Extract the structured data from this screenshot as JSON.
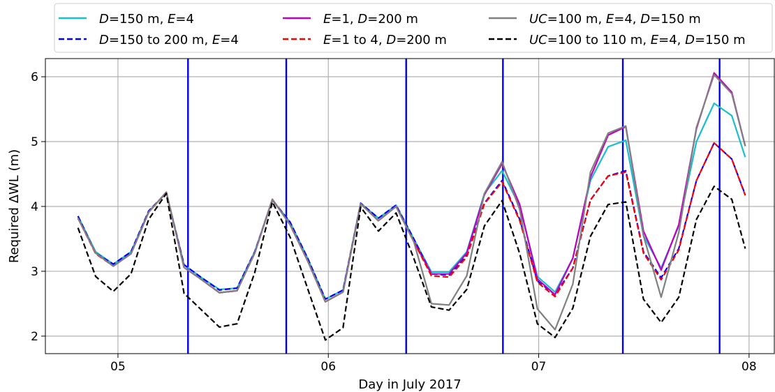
{
  "chart_data": {
    "type": "line",
    "xlabel": "Day in July 2017",
    "ylabel": "Required ΔWL (m)",
    "xlim": [
      4.655,
      8.12
    ],
    "ylim": [
      1.73,
      6.28
    ],
    "x_ticks": [
      5,
      6,
      7,
      8
    ],
    "x_tick_labels": [
      "05",
      "06",
      "07",
      "08"
    ],
    "y_ticks": [
      2,
      3,
      4,
      5,
      6
    ],
    "y_tick_labels": [
      "2",
      "3",
      "4",
      "5",
      "6"
    ],
    "grid": true,
    "legend_position": "top, above plot, 3 columns",
    "x": [
      4.81,
      4.894,
      4.978,
      5.062,
      5.146,
      5.23,
      5.314,
      5.398,
      5.482,
      5.566,
      5.65,
      5.734,
      5.818,
      5.902,
      5.986,
      6.07,
      6.154,
      6.238,
      6.322,
      6.406,
      6.49,
      6.574,
      6.658,
      6.742,
      6.826,
      6.91,
      6.994,
      7.078,
      7.162,
      7.246,
      7.33,
      7.414,
      7.498,
      7.582,
      7.666,
      7.75,
      7.834,
      7.918,
      7.982
    ],
    "series": [
      {
        "name_parts": [
          "D=150 m,  E=4"
        ],
        "label_index": 0,
        "style": "solid",
        "color": "#17becf",
        "values": [
          3.85,
          3.3,
          3.11,
          3.3,
          3.92,
          4.21,
          3.1,
          2.9,
          2.72,
          2.74,
          3.3,
          4.1,
          3.76,
          3.2,
          2.57,
          2.71,
          4.05,
          3.82,
          4.02,
          3.5,
          2.99,
          2.99,
          3.3,
          4.2,
          4.55,
          4.0,
          2.92,
          2.68,
          3.2,
          4.4,
          4.92,
          5.02,
          3.55,
          3.05,
          3.7,
          5.0,
          5.59,
          5.4,
          4.76
        ]
      },
      {
        "name_parts": [
          "D=150 to 200 m, E=4"
        ],
        "label_index": 1,
        "style": "dashed",
        "color": "#0000ff",
        "values": [
          3.85,
          3.28,
          3.11,
          3.3,
          3.93,
          4.21,
          3.1,
          2.9,
          2.71,
          2.74,
          3.3,
          4.1,
          3.76,
          3.2,
          2.57,
          2.71,
          4.05,
          3.82,
          4.02,
          3.5,
          2.96,
          2.94,
          3.25,
          4.05,
          4.4,
          3.8,
          2.85,
          2.64,
          3.05,
          4.1,
          4.47,
          4.55,
          3.3,
          2.9,
          3.35,
          4.4,
          4.98,
          4.73,
          4.18
        ]
      },
      {
        "name_parts": [
          "E=1, D=200 m"
        ],
        "label_index": 2,
        "style": "solid",
        "color": "#c000c0",
        "values": [
          3.82,
          3.28,
          3.08,
          3.27,
          3.91,
          4.22,
          3.06,
          2.87,
          2.67,
          2.7,
          3.28,
          4.11,
          3.72,
          3.16,
          2.53,
          2.68,
          4.04,
          3.78,
          4.0,
          3.46,
          2.96,
          2.96,
          3.28,
          4.18,
          4.66,
          4.03,
          2.88,
          2.64,
          3.2,
          4.45,
          5.1,
          5.23,
          3.62,
          3.02,
          3.72,
          5.2,
          6.06,
          5.76,
          4.93
        ]
      },
      {
        "name_parts": [
          "E=1 to 4, D=200 m"
        ],
        "label_index": 3,
        "style": "dashed",
        "color": "#ff0000",
        "values": [
          3.82,
          3.27,
          3.08,
          3.27,
          3.91,
          4.22,
          3.06,
          2.87,
          2.67,
          2.7,
          3.28,
          4.11,
          3.72,
          3.16,
          2.53,
          2.68,
          4.04,
          3.78,
          4.0,
          3.46,
          2.93,
          2.91,
          3.22,
          4.04,
          4.38,
          3.78,
          2.83,
          2.61,
          3.05,
          4.1,
          4.47,
          4.53,
          3.28,
          2.87,
          3.33,
          4.4,
          4.98,
          4.73,
          4.17
        ]
      },
      {
        "name_parts": [
          "UC=100 m, E=4, D=150 m"
        ],
        "label_index": 4,
        "style": "solid",
        "color": "#808080",
        "values": [
          3.82,
          3.28,
          3.08,
          3.27,
          3.91,
          4.22,
          3.06,
          2.87,
          2.67,
          2.7,
          3.28,
          4.11,
          3.72,
          3.16,
          2.53,
          2.68,
          4.04,
          3.78,
          4.0,
          3.46,
          2.5,
          2.48,
          2.93,
          4.2,
          4.69,
          3.95,
          2.42,
          2.1,
          2.8,
          4.53,
          5.13,
          5.24,
          3.55,
          2.6,
          3.6,
          5.22,
          6.03,
          5.74,
          4.93
        ]
      },
      {
        "name_parts": [
          "UC=100 to 110 m, E=4, D=150 m"
        ],
        "label_index": 5,
        "style": "dashed",
        "color": "#000000",
        "values": [
          3.67,
          2.92,
          2.69,
          2.96,
          3.8,
          4.2,
          2.66,
          2.4,
          2.14,
          2.19,
          2.98,
          4.07,
          3.53,
          2.73,
          1.94,
          2.13,
          3.99,
          3.62,
          3.9,
          3.2,
          2.45,
          2.4,
          2.72,
          3.7,
          4.09,
          3.27,
          2.19,
          1.98,
          2.43,
          3.54,
          4.03,
          4.07,
          2.57,
          2.21,
          2.6,
          3.8,
          4.31,
          4.11,
          3.35
        ]
      }
    ],
    "vertical_lines": {
      "color": "#0000ee",
      "x": [
        5.333,
        5.8,
        6.37,
        6.83,
        7.4,
        7.86
      ]
    }
  },
  "legend": {
    "items": [
      [
        {
          "t": "D",
          "i": true
        },
        {
          "t": "=150 m,  ",
          "i": false
        },
        {
          "t": "E",
          "i": true
        },
        {
          "t": "=4",
          "i": false
        }
      ],
      [
        {
          "t": "D",
          "i": true
        },
        {
          "t": "=150 to 200 m, ",
          "i": false
        },
        {
          "t": "E",
          "i": true
        },
        {
          "t": "=4",
          "i": false
        }
      ],
      [
        {
          "t": "E",
          "i": true
        },
        {
          "t": "=1, ",
          "i": false
        },
        {
          "t": "D",
          "i": true
        },
        {
          "t": "=200 m",
          "i": false
        }
      ],
      [
        {
          "t": "E",
          "i": true
        },
        {
          "t": "=1 to 4, ",
          "i": false
        },
        {
          "t": "D",
          "i": true
        },
        {
          "t": "=200 m",
          "i": false
        }
      ],
      [
        {
          "t": "UC",
          "i": true
        },
        {
          "t": "=100 m, ",
          "i": false
        },
        {
          "t": "E",
          "i": true
        },
        {
          "t": "=4, ",
          "i": false
        },
        {
          "t": "D",
          "i": true
        },
        {
          "t": "=150 m",
          "i": false
        }
      ],
      [
        {
          "t": "UC",
          "i": true
        },
        {
          "t": "=100 to 110 m, ",
          "i": false
        },
        {
          "t": "E",
          "i": true
        },
        {
          "t": "=4, ",
          "i": false
        },
        {
          "t": "D",
          "i": true
        },
        {
          "t": "=150 m",
          "i": false
        }
      ]
    ]
  }
}
